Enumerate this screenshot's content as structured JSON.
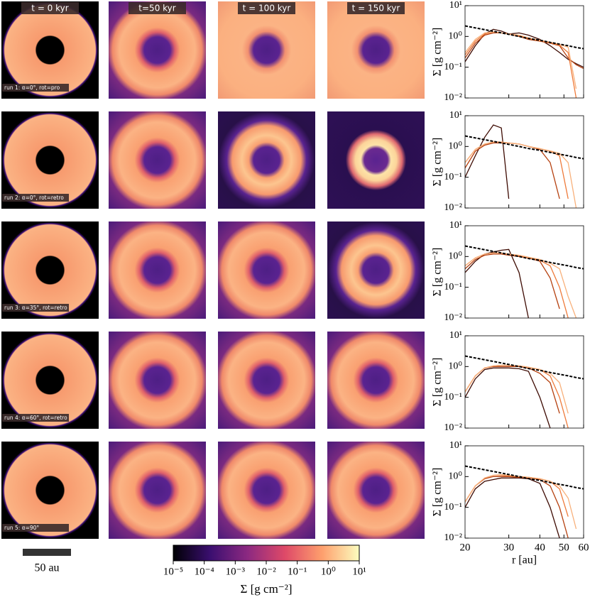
{
  "figure": {
    "column_titles": [
      "t = 0 kyr",
      "t=50 kyr",
      "t = 100 kyr",
      "t = 150 kyr"
    ],
    "row_labels": [
      "run 1: α=0°, rot=pro",
      "run 2: α=0°, rot=retro",
      "run 3: α=35°, rot=retro",
      "run 4: α=60°, rot=retro",
      "run 5: α=90°"
    ],
    "scale_bar_label": "50 au",
    "colorbar": {
      "label": "Σ [g cm⁻²]",
      "lim": [
        1e-05,
        10
      ],
      "log": true,
      "ticks": [
        {
          "value": 1e-05,
          "label": "10⁻⁵"
        },
        {
          "value": 0.0001,
          "label": "10⁻⁴"
        },
        {
          "value": 0.001,
          "label": "10⁻³"
        },
        {
          "value": 0.01,
          "label": "10⁻²"
        },
        {
          "value": 0.1,
          "label": "10⁻¹"
        },
        {
          "value": 1,
          "label": "10⁰"
        },
        {
          "value": 10,
          "label": "10¹"
        }
      ]
    }
  },
  "chart_data": [
    {
      "type": "line",
      "ylabel": "Σ [g cm⁻²]",
      "xlog": true,
      "ylog": true,
      "xlim": [
        20,
        60
      ],
      "ylim": [
        0.01,
        10
      ],
      "xticks": [
        20,
        30,
        40,
        50,
        60
      ],
      "yticks": [
        {
          "value": 0.01,
          "label": "10⁻²"
        },
        {
          "value": 0.1,
          "label": "10⁻¹"
        },
        {
          "value": 1,
          "label": "10⁰"
        },
        {
          "value": 10,
          "label": "10¹"
        }
      ],
      "x": [
        20,
        22,
        24,
        26,
        28,
        30,
        33,
        36,
        40,
        44,
        48,
        52,
        56,
        60
      ],
      "series": [
        {
          "color": "#3d0a02",
          "dashed": false,
          "values": [
            0.15,
            0.5,
            1.2,
            1.7,
            1.5,
            1.2,
            1.3,
            1.1,
            0.8,
            0.5,
            0.3,
            0.18,
            0.13,
            0.1
          ]
        },
        {
          "color": "#b5400f",
          "dashed": false,
          "values": [
            0.2,
            0.6,
            1.1,
            1.3,
            1.3,
            1.2,
            1.0,
            0.8,
            0.7,
            0.6,
            0.5,
            0.2,
            0.12,
            0.09
          ]
        },
        {
          "color": "#ee7a3a",
          "dashed": false,
          "values": [
            0.25,
            0.7,
            1.2,
            1.4,
            1.3,
            1.2,
            1.05,
            0.85,
            0.72,
            0.62,
            0.52,
            0.3,
            0.01,
            null
          ]
        },
        {
          "color": "#f8b07a",
          "dashed": false,
          "values": [
            0.3,
            0.8,
            1.3,
            1.4,
            1.3,
            1.2,
            1.1,
            0.9,
            0.75,
            0.65,
            0.55,
            0.45,
            0.02,
            null
          ]
        },
        {
          "color": "#000000",
          "dashed": true,
          "values": [
            2.2,
            1.9,
            1.66,
            1.47,
            1.31,
            1.17,
            1.0,
            0.86,
            0.75,
            0.64,
            0.56,
            0.5,
            0.44,
            0.4
          ]
        }
      ]
    },
    {
      "type": "line",
      "ylabel": "Σ [g cm⁻²]",
      "xlog": true,
      "ylog": true,
      "xlim": [
        20,
        60
      ],
      "ylim": [
        0.01,
        10
      ],
      "xticks": [
        20,
        30,
        40,
        50,
        60
      ],
      "yticks": [
        {
          "value": 0.01,
          "label": "10⁻²"
        },
        {
          "value": 0.1,
          "label": "10⁻¹"
        },
        {
          "value": 1,
          "label": "10⁰"
        },
        {
          "value": 10,
          "label": "10¹"
        }
      ],
      "x": [
        20,
        22,
        24,
        26,
        28,
        30,
        33,
        36,
        40,
        44,
        48,
        52,
        56,
        60
      ],
      "series": [
        {
          "color": "#3d0a02",
          "dashed": false,
          "values": [
            0.1,
            0.5,
            2,
            5,
            4,
            0.02,
            null,
            null,
            null,
            null,
            null,
            null,
            null,
            null
          ]
        },
        {
          "color": "#b5400f",
          "dashed": false,
          "values": [
            0.2,
            0.7,
            1.1,
            1.3,
            1.3,
            1.3,
            1.2,
            1.0,
            0.8,
            0.3,
            0.02,
            null,
            null,
            null
          ]
        },
        {
          "color": "#ee7a3a",
          "dashed": false,
          "values": [
            0.3,
            0.8,
            1.2,
            1.4,
            1.4,
            1.3,
            1.2,
            1.0,
            0.85,
            0.7,
            0.5,
            0.02,
            null,
            null
          ]
        },
        {
          "color": "#f8b07a",
          "dashed": false,
          "values": [
            0.3,
            0.8,
            1.2,
            1.4,
            1.4,
            1.3,
            1.2,
            1.0,
            0.85,
            0.72,
            0.6,
            0.3,
            0.01,
            null
          ]
        },
        {
          "color": "#000000",
          "dashed": true,
          "values": [
            2.2,
            1.9,
            1.66,
            1.47,
            1.31,
            1.17,
            1.0,
            0.86,
            0.75,
            0.64,
            0.56,
            0.5,
            0.44,
            0.4
          ]
        }
      ]
    },
    {
      "type": "line",
      "ylabel": "Σ [g cm⁻²]",
      "xlog": true,
      "ylog": true,
      "xlim": [
        20,
        60
      ],
      "ylim": [
        0.01,
        10
      ],
      "xticks": [
        20,
        30,
        40,
        50,
        60
      ],
      "yticks": [
        {
          "value": 0.01,
          "label": "10⁻²"
        },
        {
          "value": 0.1,
          "label": "10⁻¹"
        },
        {
          "value": 1,
          "label": "10⁰"
        },
        {
          "value": 10,
          "label": "10¹"
        }
      ],
      "x": [
        20,
        22,
        24,
        26,
        28,
        30,
        33,
        36,
        40,
        44,
        48,
        52,
        56,
        60
      ],
      "series": [
        {
          "color": "#3d0a02",
          "dashed": false,
          "values": [
            0.3,
            0.7,
            1.2,
            1.4,
            1.6,
            1.7,
            0.3,
            0.01,
            null,
            null,
            null,
            null,
            null,
            null
          ]
        },
        {
          "color": "#b5400f",
          "dashed": false,
          "values": [
            0.4,
            0.8,
            1.1,
            1.2,
            1.2,
            1.1,
            1.0,
            0.9,
            0.7,
            0.2,
            0.02,
            null,
            null,
            null
          ]
        },
        {
          "color": "#ee7a3a",
          "dashed": false,
          "values": [
            0.5,
            0.9,
            1.2,
            1.3,
            1.3,
            1.2,
            1.05,
            0.9,
            0.75,
            0.5,
            0.1,
            0.01,
            null,
            null
          ]
        },
        {
          "color": "#f8b07a",
          "dashed": false,
          "values": [
            0.5,
            0.9,
            1.2,
            1.3,
            1.3,
            1.2,
            1.1,
            0.95,
            0.8,
            0.6,
            0.4,
            0.05,
            0.01,
            null
          ]
        },
        {
          "color": "#000000",
          "dashed": true,
          "values": [
            2.2,
            1.9,
            1.66,
            1.47,
            1.31,
            1.17,
            1.0,
            0.86,
            0.75,
            0.64,
            0.56,
            0.5,
            0.44,
            0.4
          ]
        }
      ]
    },
    {
      "type": "line",
      "ylabel": "Σ [g cm⁻²]",
      "xlog": true,
      "ylog": true,
      "xlim": [
        20,
        60
      ],
      "ylim": [
        0.01,
        10
      ],
      "xticks": [
        20,
        30,
        40,
        50,
        60
      ],
      "yticks": [
        {
          "value": 0.01,
          "label": "10⁻²"
        },
        {
          "value": 0.1,
          "label": "10⁻¹"
        },
        {
          "value": 1,
          "label": "10⁰"
        },
        {
          "value": 10,
          "label": "10¹"
        }
      ],
      "x": [
        20,
        22,
        24,
        26,
        28,
        30,
        33,
        36,
        40,
        44,
        48,
        52,
        56,
        60
      ],
      "series": [
        {
          "color": "#3d0a02",
          "dashed": false,
          "values": [
            0.1,
            0.4,
            0.8,
            0.9,
            0.9,
            0.9,
            0.85,
            0.7,
            0.1,
            0.01,
            null,
            null,
            null,
            null
          ]
        },
        {
          "color": "#b5400f",
          "dashed": false,
          "values": [
            0.15,
            0.5,
            0.9,
            1.0,
            1.0,
            1.0,
            1.0,
            0.9,
            0.6,
            0.3,
            0.03,
            null,
            null,
            null
          ]
        },
        {
          "color": "#ee7a3a",
          "dashed": false,
          "values": [
            0.15,
            0.5,
            0.9,
            1.05,
            1.1,
            1.1,
            1.05,
            0.95,
            0.8,
            0.5,
            0.1,
            0.01,
            null,
            null
          ]
        },
        {
          "color": "#f8b07a",
          "dashed": false,
          "values": [
            0.15,
            0.5,
            0.9,
            1.05,
            1.1,
            1.1,
            1.05,
            0.95,
            0.8,
            0.6,
            0.3,
            0.03,
            null,
            null
          ]
        },
        {
          "color": "#000000",
          "dashed": true,
          "values": [
            2.2,
            1.9,
            1.66,
            1.47,
            1.31,
            1.17,
            1.0,
            0.86,
            0.75,
            0.64,
            0.56,
            0.5,
            0.44,
            0.4
          ]
        }
      ]
    },
    {
      "type": "line",
      "ylabel": "Σ [g cm⁻²]",
      "xlabel": "r [au]",
      "xlog": true,
      "ylog": true,
      "xlim": [
        20,
        60
      ],
      "ylim": [
        0.01,
        10
      ],
      "xticks": [
        20,
        30,
        40,
        50,
        60
      ],
      "yticks": [
        {
          "value": 0.01,
          "label": "10⁻²"
        },
        {
          "value": 0.1,
          "label": "10⁻¹"
        },
        {
          "value": 1,
          "label": "10⁰"
        },
        {
          "value": 10,
          "label": "10¹"
        }
      ],
      "x": [
        20,
        22,
        24,
        26,
        28,
        30,
        33,
        36,
        40,
        44,
        48,
        52,
        56,
        60
      ],
      "series": [
        {
          "color": "#3d0a02",
          "dashed": false,
          "values": [
            0.1,
            0.4,
            0.7,
            0.8,
            0.9,
            0.9,
            0.9,
            0.85,
            0.6,
            0.1,
            0.01,
            null,
            null,
            null
          ]
        },
        {
          "color": "#b5400f",
          "dashed": false,
          "values": [
            0.15,
            0.5,
            0.85,
            1.0,
            1.0,
            1.0,
            0.95,
            0.9,
            0.8,
            0.5,
            0.1,
            0.01,
            null,
            null
          ]
        },
        {
          "color": "#ee7a3a",
          "dashed": false,
          "values": [
            0.15,
            0.5,
            0.9,
            1.1,
            1.1,
            1.05,
            1.0,
            0.95,
            0.85,
            0.7,
            0.4,
            0.05,
            null,
            null
          ]
        },
        {
          "color": "#f8b07a",
          "dashed": false,
          "values": [
            0.15,
            0.5,
            0.9,
            1.1,
            1.15,
            1.1,
            1.0,
            0.95,
            0.85,
            0.7,
            0.5,
            0.2,
            0.02,
            null
          ]
        },
        {
          "color": "#000000",
          "dashed": true,
          "values": [
            2.2,
            1.9,
            1.66,
            1.47,
            1.31,
            1.17,
            1.0,
            0.86,
            0.75,
            0.64,
            0.56,
            0.5,
            0.44,
            0.4
          ]
        }
      ]
    }
  ]
}
